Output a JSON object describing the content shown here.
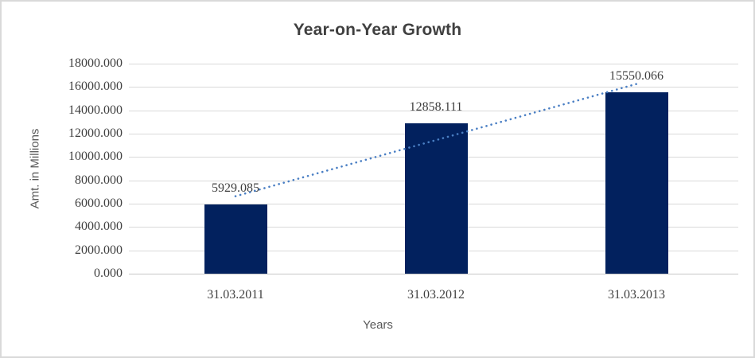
{
  "chart_data": {
    "type": "bar",
    "title": "Year-on-Year Growth",
    "xlabel": "Years",
    "ylabel": "Amt. in Millions",
    "categories": [
      "31.03.2011",
      "31.03.2012",
      "31.03.2013"
    ],
    "values": [
      5929.085,
      12858.111,
      15550.066
    ],
    "data_labels": [
      "5929.085",
      "12858.111",
      "15550.066"
    ],
    "ylim": [
      0,
      18000
    ],
    "ytick_step": 2000,
    "ytick_decimals": 3,
    "grid": true,
    "legend": "none",
    "trendline": {
      "type": "linear",
      "style": "dotted",
      "color": "#4a7fc4"
    },
    "colors": {
      "bar": "#02215e",
      "gridline": "#d9d9d9",
      "label_text": "#404040",
      "axis_title_text": "#595959",
      "border": "#d9d9d9"
    }
  }
}
